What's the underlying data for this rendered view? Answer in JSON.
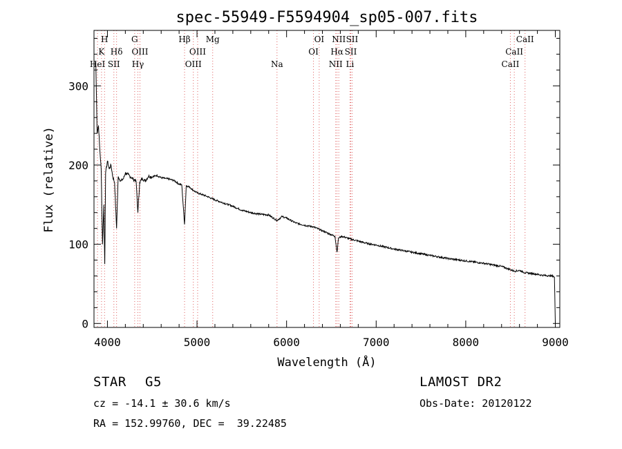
{
  "chart_data": {
    "type": "line",
    "title": "spec-55949-F5594904_sp05-007.fits",
    "xlabel": "Wavelength (Å)",
    "ylabel": "Flux (relative)",
    "xlim": [
      3850,
      9050
    ],
    "ylim": [
      -5,
      370
    ],
    "xticks": [
      4000,
      5000,
      6000,
      7000,
      8000,
      9000
    ],
    "yticks": [
      0,
      100,
      200,
      300
    ],
    "grid": false,
    "line_color": "#000000",
    "marker_color": "#e06060",
    "series": [
      {
        "x": [
          3870,
          3885,
          3900,
          3915,
          3930,
          3945,
          3960,
          3970,
          3980,
          4000,
          4020,
          4040,
          4060,
          4080,
          4102,
          4120,
          4150,
          4180,
          4200,
          4230,
          4260,
          4290,
          4320,
          4340,
          4360,
          4390,
          4420,
          4460,
          4500,
          4550,
          4600,
          4650,
          4700,
          4750,
          4800,
          4830,
          4861,
          4880,
          4920,
          4960,
          5000,
          5050,
          5100,
          5200,
          5300,
          5400,
          5500,
          5600,
          5700,
          5800,
          5893,
          5950,
          6000,
          6100,
          6200,
          6300,
          6400,
          6500,
          6540,
          6563,
          6580,
          6620,
          6700,
          6800,
          6900,
          7000,
          7200,
          7400,
          7600,
          7800,
          8000,
          8200,
          8400,
          8498,
          8542,
          8600,
          8662,
          8750,
          8850,
          8950,
          8975,
          8990,
          9000
        ],
        "y": [
          330,
          240,
          250,
          220,
          195,
          100,
          150,
          75,
          190,
          205,
          195,
          200,
          185,
          178,
          120,
          185,
          180,
          183,
          190,
          188,
          185,
          182,
          180,
          140,
          178,
          183,
          180,
          186,
          185,
          187,
          184,
          183,
          182,
          180,
          176,
          175,
          125,
          174,
          172,
          168,
          165,
          163,
          161,
          156,
          152,
          148,
          143,
          140,
          138,
          137,
          130,
          135,
          133,
          127,
          124,
          122,
          117,
          112,
          110,
          90,
          108,
          110,
          107,
          104,
          101,
          99,
          94,
          90,
          86,
          82,
          79,
          76,
          72,
          68,
          66,
          67,
          64,
          63,
          61,
          60,
          60,
          58,
          0
        ]
      }
    ],
    "lines": [
      {
        "x": 3889,
        "label": "HeI",
        "row": 2
      },
      {
        "x": 3934,
        "label": "K",
        "row": 1
      },
      {
        "x": 3968,
        "label": "H",
        "row": 0
      },
      {
        "x": 4072,
        "label": "SII",
        "row": 2
      },
      {
        "x": 4102,
        "label": "Hδ",
        "row": 1
      },
      {
        "x": 4304,
        "label": "G",
        "row": 0
      },
      {
        "x": 4340,
        "label": "Hγ",
        "row": 2
      },
      {
        "x": 4363,
        "label": "OIII",
        "row": 1
      },
      {
        "x": 4861,
        "label": "Hβ",
        "row": 0
      },
      {
        "x": 4959,
        "label": "OIII",
        "row": 2
      },
      {
        "x": 5007,
        "label": "OIII",
        "row": 1
      },
      {
        "x": 5175,
        "label": "Mg",
        "row": 0
      },
      {
        "x": 5893,
        "label": "Na",
        "row": 2
      },
      {
        "x": 6300,
        "label": "OI",
        "row": 1
      },
      {
        "x": 6364,
        "label": "OI",
        "row": 0
      },
      {
        "x": 6548,
        "label": "NII",
        "row": 2
      },
      {
        "x": 6563,
        "label": "Hα",
        "row": 1
      },
      {
        "x": 6583,
        "label": "NII",
        "row": 0
      },
      {
        "x": 6708,
        "label": "Li",
        "row": 2
      },
      {
        "x": 6716,
        "label": "SII",
        "row": 1
      },
      {
        "x": 6731,
        "label": "SII",
        "row": 0
      },
      {
        "x": 8498,
        "label": "CaII",
        "row": 2
      },
      {
        "x": 8542,
        "label": "CaII",
        "row": 1
      },
      {
        "x": 8662,
        "label": "CaII",
        "row": 0
      }
    ]
  },
  "info": {
    "class_label": "STAR",
    "subclass": "G5",
    "survey": "LAMOST DR2",
    "redshift": "cz = -14.1 ± 30.6 km/s",
    "obs_date": "Obs-Date: 20120122",
    "coords": "RA = 152.99760, DEC =  39.22485"
  }
}
